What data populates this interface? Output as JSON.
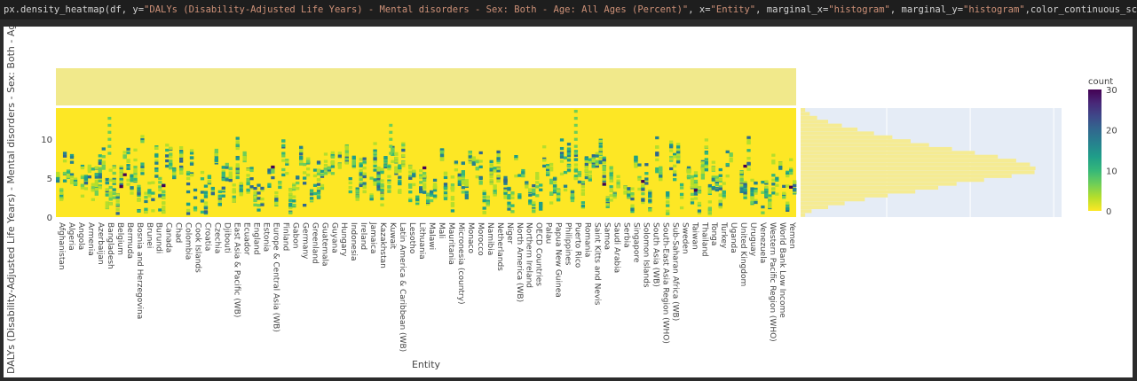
{
  "code_line": {
    "prefix": "px.density_heatmap(df, y=",
    "y_arg": "\"DALYs (Disability-Adjusted Life Years) - Mental disorders - Sex: Both - Age: All Ages (Percent)\"",
    "mid1": ", x=",
    "x_arg": "\"Entity\"",
    "mid2": ", marginal_x=",
    "mx_arg": "\"histogram\"",
    "mid3": ", marginal_y=",
    "my_arg": "\"histogram\"",
    "suffix": ",color_continuous_scale=px.colors.sequ"
  },
  "colors": {
    "heat_scale": [
      "#fde725",
      "#b5de2b",
      "#6ece58",
      "#35b779",
      "#1f9e89",
      "#26828e",
      "#31688e",
      "#3e4989",
      "#482878",
      "#440154"
    ],
    "marginal_x_fill": "#f1e98b",
    "marginal_y_fill": "#f5eb93",
    "marginal_y_bg": "#e5ecf6",
    "axis_text": "#444444"
  },
  "chart_data": {
    "type": "heatmap",
    "xlabel": "Entity",
    "ylabel": "DALYs (Disability-Adjusted Life Years) - Mental disorders - Sex: Both - Age: All Ages (Percent)",
    "y_ticks": [
      0,
      5,
      10
    ],
    "ylim": [
      0,
      14
    ],
    "colorbar": {
      "title": "count",
      "ticks": [
        0,
        10,
        20,
        30
      ],
      "range": [
        0,
        30
      ]
    },
    "marginal_x": "histogram",
    "marginal_y": "histogram",
    "x_tick_labels": [
      "Afghanistan",
      "Algeria",
      "Angola",
      "Armenia",
      "Azerbaijan",
      "Bangladesh",
      "Belgium",
      "Bermuda",
      "Bosnia and Herzegovina",
      "Brunei",
      "Burundi",
      "Canada",
      "Chad",
      "Colombia",
      "Cook Islands",
      "Croatia",
      "Czechia",
      "Djibouti",
      "East Asia & Pacific (WB)",
      "Ecuador",
      "England",
      "Estonia",
      "Europe & Central Asia (WB)",
      "Finland",
      "Gabon",
      "Germany",
      "Greenland",
      "Guatemala",
      "Guyana",
      "Hungary",
      "Indonesia",
      "Ireland",
      "Jamaica",
      "Kazakhstan",
      "Kuwait",
      "Latin America & Caribbean (WB)",
      "Lesotho",
      "Lithuania",
      "Malawi",
      "Mali",
      "Mauritania",
      "Micronesia (country)",
      "Monaco",
      "Morocco",
      "Namibia",
      "Netherlands",
      "Niger",
      "North America (WB)",
      "Northern Ireland",
      "OECD Countries",
      "Palau",
      "Papua New Guinea",
      "Philippines",
      "Puerto Rico",
      "Romania",
      "Saint Kitts and Nevis",
      "Samoa",
      "Saudi Arabia",
      "Serbia",
      "Singapore",
      "Solomon Islands",
      "South Asia (WB)",
      "South-East Asia Region (WHO)",
      "Sub-Saharan Africa (WB)",
      "Sweden",
      "Taiwan",
      "Thailand",
      "Tonga",
      "Turkey",
      "Uganda",
      "United Kingdom",
      "Uruguay",
      "Venezuela",
      "Western Pacific Region (WHO)",
      "World Bank Low Income",
      "Yemen"
    ],
    "marginal_y_counts": [
      5,
      12,
      30,
      48,
      70,
      95,
      125,
      150,
      170,
      200,
      230,
      255,
      256,
      250,
      235,
      215,
      190,
      165,
      140,
      120,
      100,
      80,
      62,
      45,
      30,
      18,
      10,
      5
    ]
  }
}
